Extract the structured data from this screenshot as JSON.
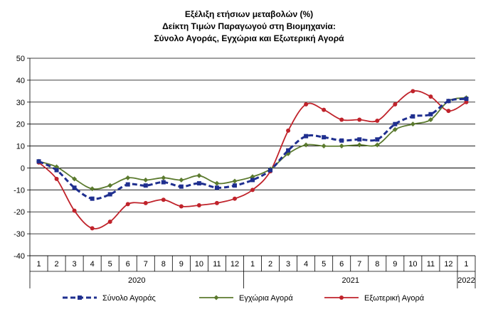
{
  "chart_data": {
    "type": "line",
    "title_lines": [
      "Εξέλιξη ετήσιων μεταβολών (%)",
      "Δείκτη Τιμών Παραγωγού στη Βιομηχανία:",
      "Σύνολο Αγοράς, Εγχώρια και Εξωτερική Αγορά"
    ],
    "x": [
      "1",
      "2",
      "3",
      "4",
      "5",
      "6",
      "7",
      "8",
      "9",
      "10",
      "11",
      "12",
      "1",
      "2",
      "3",
      "4",
      "5",
      "6",
      "7",
      "8",
      "9",
      "10",
      "11",
      "12",
      "1"
    ],
    "year_groups": [
      {
        "label": "2020",
        "start": 0,
        "end": 11
      },
      {
        "label": "2021",
        "start": 12,
        "end": 23
      },
      {
        "label": "2022",
        "start": 24,
        "end": 24
      }
    ],
    "ylim": [
      -40,
      50
    ],
    "yticks": [
      -40,
      -30,
      -20,
      -10,
      0,
      10,
      20,
      30,
      40,
      50
    ],
    "grid": true,
    "legend_position": "bottom",
    "series": [
      {
        "name": "Σύνολο Αγοράς",
        "color": "#1f2f8f",
        "style": "dashed",
        "values": [
          3,
          -1,
          -9,
          -14,
          -12,
          -7.5,
          -8,
          -6.5,
          -8.5,
          -7,
          -9,
          -8,
          -5.5,
          -1,
          8,
          14.5,
          14,
          12.5,
          13,
          13,
          20,
          23.5,
          24.5,
          30.5,
          31.5
        ]
      },
      {
        "name": "Εγχώρια Αγορά",
        "color": "#5b7a2e",
        "style": "solid",
        "values": [
          3,
          0.5,
          -5,
          -9.5,
          -8,
          -4.5,
          -5.5,
          -4.5,
          -5.5,
          -3.5,
          -7,
          -6,
          -4,
          -0.5,
          6.5,
          10.5,
          10,
          10,
          10.5,
          10.5,
          17.5,
          20,
          22,
          30.5,
          32
        ]
      },
      {
        "name": "Εξωτερική Αγορά",
        "color": "#c0232b",
        "style": "solid",
        "values": [
          2.5,
          -5,
          -19.5,
          -27.5,
          -24.5,
          -16.5,
          -16,
          -14.5,
          -17.5,
          -17,
          -16,
          -14,
          -10,
          -1.5,
          17,
          29,
          26.5,
          22,
          22,
          21.5,
          29,
          35,
          32.5,
          26,
          30
        ]
      }
    ]
  }
}
